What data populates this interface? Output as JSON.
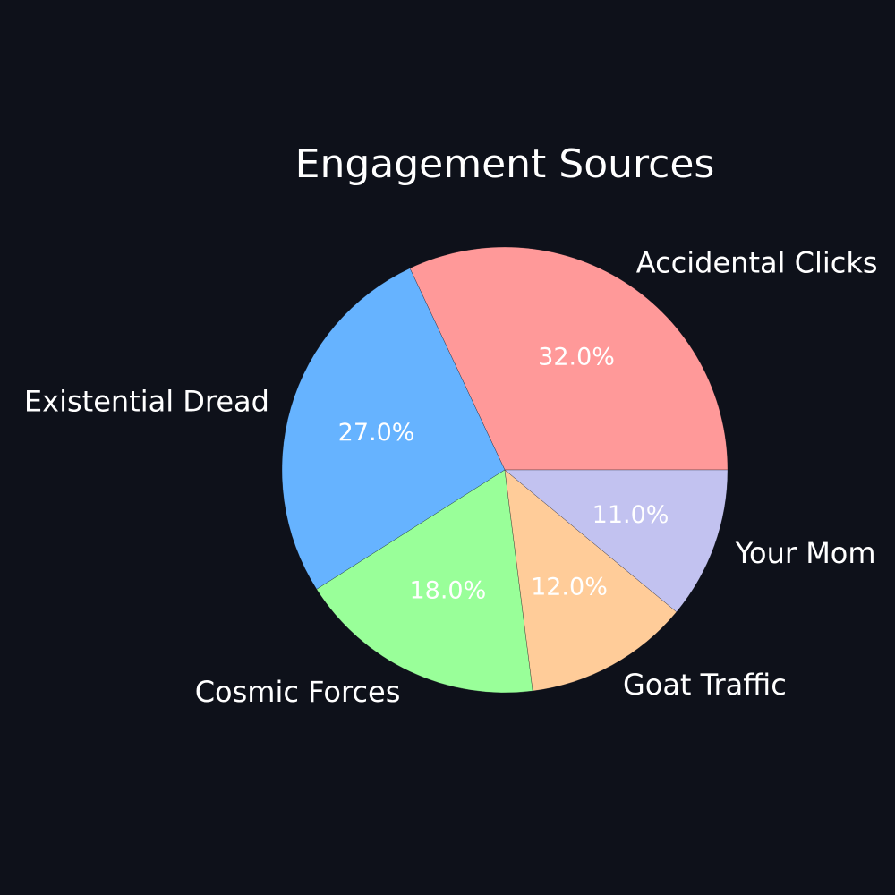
{
  "chart_data": {
    "type": "pie",
    "title": "Engagement Sources",
    "labels": [
      "Accidental Clicks",
      "Existential Dread",
      "Cosmic Forces",
      "Goat Traffic",
      "Your Mom"
    ],
    "values": [
      32.0,
      27.0,
      18.0,
      12.0,
      11.0
    ],
    "percent_labels": [
      "32.0%",
      "27.0%",
      "18.0%",
      "12.0%",
      "11.0%"
    ],
    "colors": [
      "#ff9999",
      "#66b3ff",
      "#99ff99",
      "#ffcc99",
      "#c2c2f0"
    ],
    "start_angle_degrees": 0,
    "direction": "counterclockwise",
    "legend": "none"
  }
}
